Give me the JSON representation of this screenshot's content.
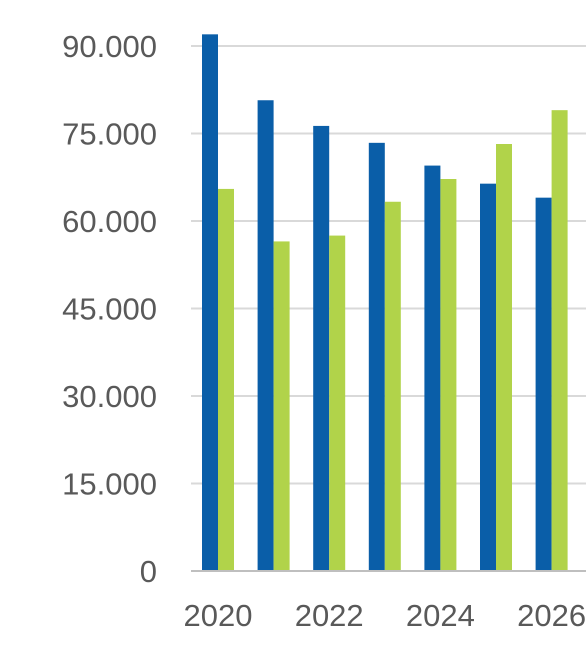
{
  "chart_data": {
    "type": "bar",
    "categories": [
      "2020",
      "2021",
      "2022",
      "2023",
      "2024",
      "2025",
      "2026"
    ],
    "x_tick_labels": [
      "2020",
      "2022",
      "2024",
      "2026"
    ],
    "series": [
      {
        "values": [
          92000,
          80700,
          76300,
          73400,
          69500,
          66400,
          64000
        ]
      },
      {
        "values": [
          65500,
          56500,
          57500,
          63300,
          67200,
          73200,
          79000
        ]
      }
    ],
    "y_tick_labels": [
      "0",
      "15.000",
      "30.000",
      "45.000",
      "60.000",
      "75.000",
      "90.000"
    ],
    "ylim": [
      0,
      90000
    ],
    "grid": true,
    "title": "",
    "xlabel": "",
    "ylabel": "",
    "colors": {
      "series": [
        "#0a5ea8",
        "#b1d34a"
      ],
      "grid": "#d9d9d9",
      "axis": "#bfbfbf",
      "text": "#595959"
    }
  }
}
